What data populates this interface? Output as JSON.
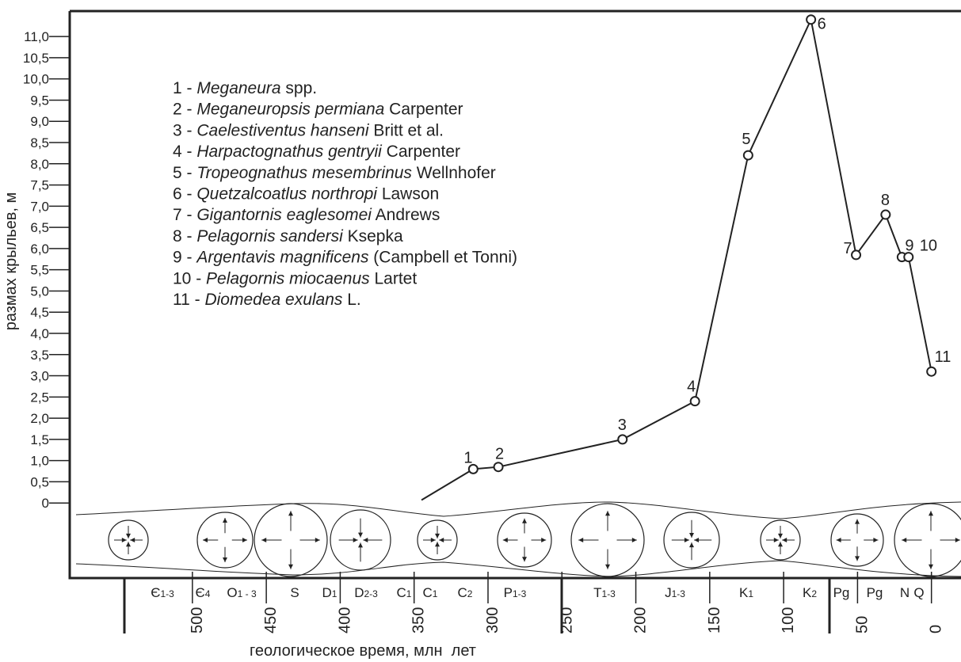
{
  "chart_data": {
    "type": "line",
    "y_label": "размах крыльев, м",
    "x_label": "геологическое время, млн  лет",
    "x": [
      345,
      310,
      293,
      209,
      160,
      124,
      81.5,
      51,
      31,
      20,
      15.5,
      0
    ],
    "values": [
      0.07,
      0.8,
      0.85,
      1.5,
      2.4,
      8.2,
      11.4,
      5.85,
      6.8,
      5.8,
      5.8,
      3.1
    ],
    "point_labels": [
      null,
      "1",
      "2",
      "3",
      "4",
      "5",
      "6",
      "7",
      "8",
      "9",
      "10",
      "11"
    ],
    "color": "#222222",
    "xlim": [
      583,
      -20
    ],
    "ylim": [
      -1.77,
      11.6
    ],
    "xticks": [
      500,
      450,
      400,
      350,
      300,
      250,
      200,
      150,
      100,
      50,
      0
    ],
    "yticks": [
      0,
      {
        "value": 0.5,
        "label": "0,5"
      },
      {
        "value": 1,
        "label": "1,0"
      },
      {
        "value": 1.5,
        "label": "1,5"
      },
      {
        "value": 2,
        "label": "2,0"
      },
      {
        "value": 2.5,
        "label": "2,5"
      },
      {
        "value": 3,
        "label": "3,0"
      },
      {
        "value": 3.5,
        "label": "3,5"
      },
      {
        "value": 4,
        "label": "4,0"
      },
      {
        "value": 4.5,
        "label": "4,5"
      },
      {
        "value": 5,
        "label": "5,0"
      },
      {
        "value": 5.5,
        "label": "5,5"
      },
      {
        "value": 6,
        "label": "6,0"
      },
      {
        "value": 6.5,
        "label": "6,5"
      },
      {
        "value": 7,
        "label": "7,0"
      },
      {
        "value": 7.5,
        "label": "7,5"
      },
      {
        "value": 8,
        "label": "8,0"
      },
      {
        "value": 8.5,
        "label": "8,5"
      },
      {
        "value": 9,
        "label": "9,0"
      },
      {
        "value": 9.5,
        "label": "9,5"
      },
      {
        "value": 10,
        "label": "10,0"
      },
      {
        "value": 10.5,
        "label": "10,5"
      },
      {
        "value": 11,
        "label": "11,0"
      }
    ],
    "legend": [
      {
        "prefix": "1 - ",
        "italic": "Meganeura",
        "suffix": " spp."
      },
      {
        "prefix": "2 - ",
        "italic": "Meganeuropsis permiana",
        "suffix": " Carpenter"
      },
      {
        "prefix": "3 - ",
        "italic": "Caelestiventus hanseni",
        "suffix": " Britt et al."
      },
      {
        "prefix": "4 - ",
        "italic": "Harpactognathus gentryii",
        "suffix": " Carpenter"
      },
      {
        "prefix": "5 - ",
        "italic": "Tropeognathus mesembrinus",
        "suffix": " Wellnhofer"
      },
      {
        "prefix": "6 - ",
        "italic": "Quetzalcoatlus northropi",
        "suffix": " Lawson"
      },
      {
        "prefix": "7 - ",
        "italic": "Gigantornis eaglesomei",
        "suffix": " Andrews"
      },
      {
        "prefix": "8 - ",
        "italic": "Pelagornis sandersi",
        "suffix": " Ksepka"
      },
      {
        "prefix": "9 - ",
        "italic": "Argentavis magnificens",
        "suffix": " (Campbell et Tonni)"
      },
      {
        "prefix": "10 - ",
        "italic": "Pelagornis miocaenus",
        "suffix": " Lartet"
      },
      {
        "prefix": "11 - ",
        "italic": "Diomedea exulans",
        "suffix": " L."
      }
    ],
    "periods": [
      {
        "base": "Є",
        "sub": "1-3"
      },
      {
        "base": "Є",
        "sub": "4"
      },
      {
        "base": "O",
        "sub": "1 - 3"
      },
      {
        "base": "S",
        "sub": ""
      },
      {
        "base": "D",
        "sub": "1"
      },
      {
        "base": "D",
        "sub": "2-3"
      },
      {
        "base": "C",
        "sub": "1"
      },
      {
        "base": "C",
        "sub": "1"
      },
      {
        "base": "C",
        "sub": "2"
      },
      {
        "base": "P",
        "sub": "1-3"
      },
      {
        "base": "T",
        "sub": "1-3"
      },
      {
        "base": "J",
        "sub": "1-3"
      },
      {
        "base": "K",
        "sub": "1"
      },
      {
        "base": "K",
        "sub": "2"
      },
      {
        "base": "Pg",
        "sub": ""
      },
      {
        "base": "Pg",
        "sub": ""
      },
      {
        "base": "N",
        "sub": ""
      },
      {
        "base": "Q",
        "sub": ""
      }
    ]
  }
}
